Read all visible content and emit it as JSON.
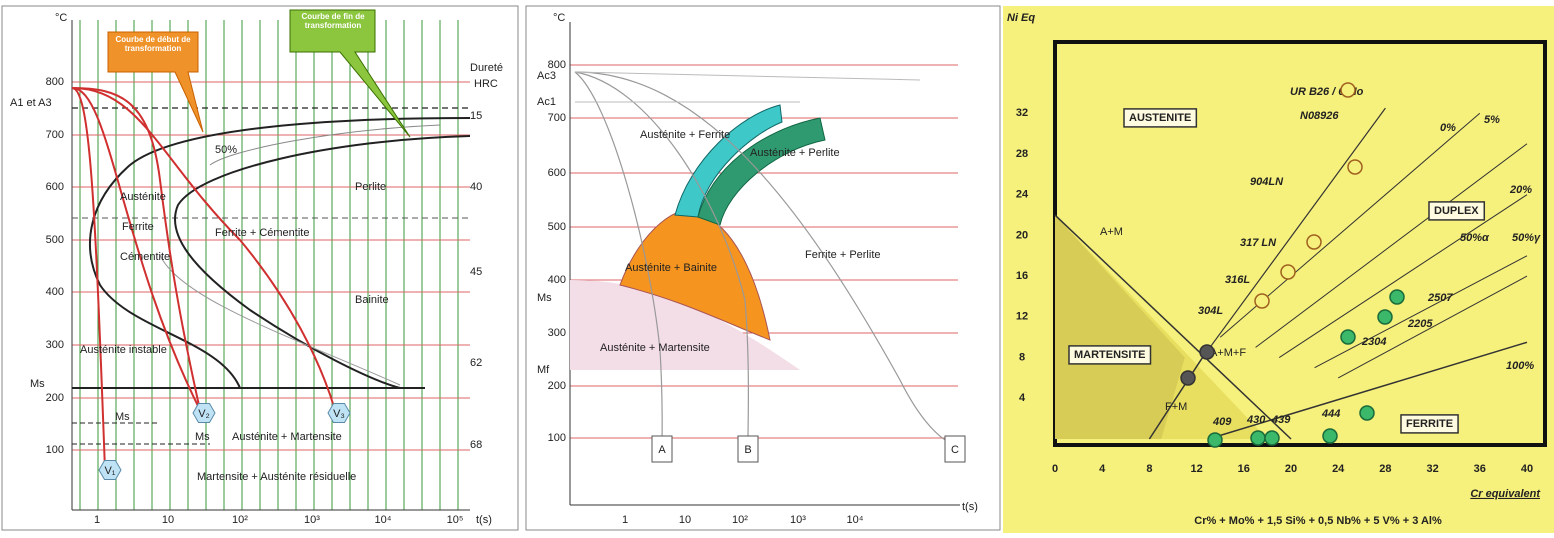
{
  "panel_1": {
    "y_unit": "°C",
    "x_unit": "t(s)",
    "hardness_title": [
      "Dureté",
      "HRC"
    ],
    "y_ticks": [
      "800",
      "700",
      "600",
      "500",
      "400",
      "300",
      "200",
      "100"
    ],
    "x_ticks": [
      "1",
      "10",
      "10²",
      "10³",
      "10⁴",
      "10⁵"
    ],
    "hardness_ticks": [
      "15",
      "40",
      "45",
      "62",
      "68"
    ],
    "callout_start": "Courbe de début de transformation",
    "callout_end": "Courbe de fin de transformation",
    "labels": {
      "a1a3": "A1 et A3",
      "ms": "Ms",
      "pct": "50%",
      "austenite": "Austénite",
      "ferrite": "Ferrite",
      "cementite": "Cémentite",
      "perlite": "Perlite",
      "bainite": "Bainite",
      "ferrite_cementite": "Ferrite + Cémentite",
      "austenite_instable": "Austénite instable",
      "ms_1": "Ms",
      "ms_2": "Ms",
      "austenite_martensite": "Austénite + Martensite",
      "martensite_residual": "Martensite + Austénite résiduelle",
      "v1": "V₁",
      "v2": "V₂",
      "v3": "V₃"
    }
  },
  "panel_2": {
    "y_unit": "°C",
    "x_unit": "t(s)",
    "y_ticks": [
      "800",
      "700",
      "600",
      "500",
      "400",
      "300",
      "200",
      "100"
    ],
    "x_ticks": [
      "1",
      "10",
      "10²",
      "10³",
      "10⁴"
    ],
    "labels": {
      "ac3": "Ac3",
      "ac1": "Ac1",
      "ms": "Ms",
      "mf": "Mf",
      "aus_ferrite": "Austénite + Ferrite",
      "aus_perlite": "Austénite + Perlite",
      "aus_bainite": "Austénite + Bainite",
      "ferrite_perlite": "Ferrite + Perlite",
      "aus_martensite": "Austénite + Martensite",
      "a": "A",
      "b": "B",
      "c": "C"
    }
  },
  "panel_3": {
    "y_title": "Ni Eq",
    "x_title": "Cr equivalent",
    "formula": "Cr% + Mo% + 1,5 Si% + 0,5 Nb% + 5 V% + 3 Al%",
    "y_ticks": [
      "32",
      "28",
      "24",
      "20",
      "16",
      "12",
      "8",
      "4"
    ],
    "x_ticks": [
      "0",
      "4",
      "8",
      "12",
      "16",
      "20",
      "24",
      "28",
      "32",
      "36",
      "40"
    ],
    "regions": {
      "austenite": "AUSTENITE",
      "duplex": "DUPLEX",
      "martensite": "MARTENSITE",
      "ferrite": "FERRITE",
      "am": "A+M",
      "amf": "A+M+F",
      "fm": "F+M"
    },
    "grades": {
      "urb26": "UR B26 / 6 Mo",
      "n08926": "N08926",
      "g904": "904LN",
      "g317": "317 LN",
      "g316": "316L",
      "g304": "304L",
      "g2507": "2507",
      "g2205": "2205",
      "g2304": "2304",
      "g409": "409",
      "g430": "430",
      "g439": "439",
      "g444": "444"
    },
    "ferrite_lines": {
      "p0": "0%",
      "p5": "5%",
      "p20": "20%",
      "p50a": "50%α",
      "p50g": "50%γ",
      "p100": "100%"
    }
  }
}
